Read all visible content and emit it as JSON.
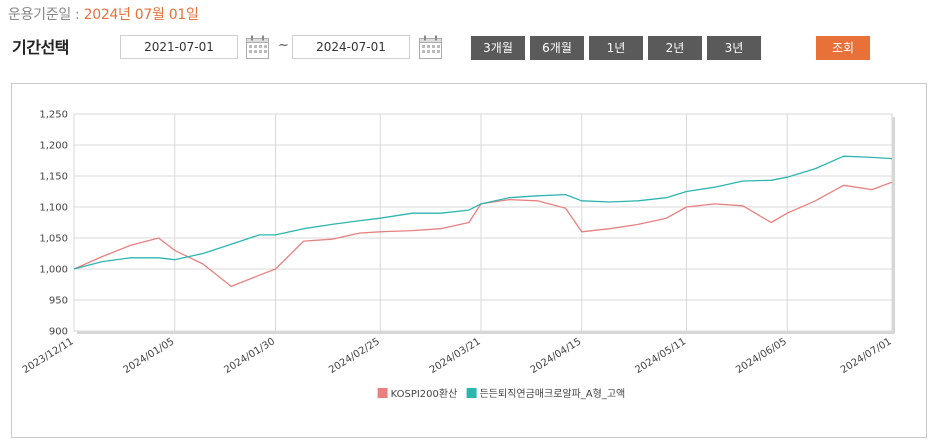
{
  "header": {
    "base_date_label": "운용기준일 : ",
    "base_date_value": "2024년 07월 01일",
    "period_label": "기간선택"
  },
  "filters": {
    "start_date": "2021-07-01",
    "end_date": "2024-07-01",
    "separator": "~",
    "period_buttons": [
      "3개월",
      "6개월",
      "1년",
      "2년",
      "3년"
    ],
    "search_label": "조회"
  },
  "icons": {
    "calendar": "calendar-icon"
  },
  "colors": {
    "accent": "#e8713a",
    "button_dark": "#5a5a5a",
    "series_kospi": "#e88080",
    "series_fund": "#2eb5b0"
  },
  "chart_data": {
    "type": "line",
    "x": [
      "2023/12/11",
      "2023/12/18",
      "2023/12/25",
      "2024/01/01",
      "2024/01/05",
      "2024/01/12",
      "2024/01/19",
      "2024/01/26",
      "2024/01/30",
      "2024/02/06",
      "2024/02/13",
      "2024/02/20",
      "2024/02/25",
      "2024/03/04",
      "2024/03/11",
      "2024/03/18",
      "2024/03/21",
      "2024/03/28",
      "2024/04/04",
      "2024/04/11",
      "2024/04/15",
      "2024/04/22",
      "2024/04/29",
      "2024/05/06",
      "2024/05/11",
      "2024/05/18",
      "2024/05/25",
      "2024/06/01",
      "2024/06/05",
      "2024/06/12",
      "2024/06/19",
      "2024/06/26",
      "2024/07/01"
    ],
    "x_ticks": [
      "2023/12/11",
      "2024/01/05",
      "2024/01/30",
      "2024/02/25",
      "2024/03/21",
      "2024/04/15",
      "2024/05/11",
      "2024/06/05",
      "2024/07/01"
    ],
    "series": [
      {
        "name": "KOSPI200환산",
        "color": "#e88080",
        "values": [
          1000,
          1020,
          1038,
          1050,
          1030,
          1008,
          972,
          990,
          1000,
          1045,
          1048,
          1058,
          1060,
          1062,
          1065,
          1075,
          1105,
          1112,
          1110,
          1098,
          1060,
          1065,
          1072,
          1082,
          1100,
          1105,
          1102,
          1075,
          1090,
          1110,
          1135,
          1128,
          1140
        ]
      },
      {
        "name": "든든퇴직연금매크로알파_A형_고액",
        "color": "#2eb5b0",
        "values": [
          1000,
          1012,
          1018,
          1018,
          1015,
          1025,
          1040,
          1055,
          1055,
          1065,
          1072,
          1078,
          1082,
          1090,
          1090,
          1095,
          1105,
          1115,
          1118,
          1120,
          1110,
          1108,
          1110,
          1115,
          1125,
          1132,
          1142,
          1143,
          1148,
          1162,
          1182,
          1180,
          1178
        ]
      }
    ],
    "ylim": [
      900,
      1250
    ],
    "y_ticks": [
      900,
      950,
      1000,
      1050,
      1100,
      1150,
      1200,
      1250
    ],
    "grid": true,
    "legend_position": "bottom"
  }
}
